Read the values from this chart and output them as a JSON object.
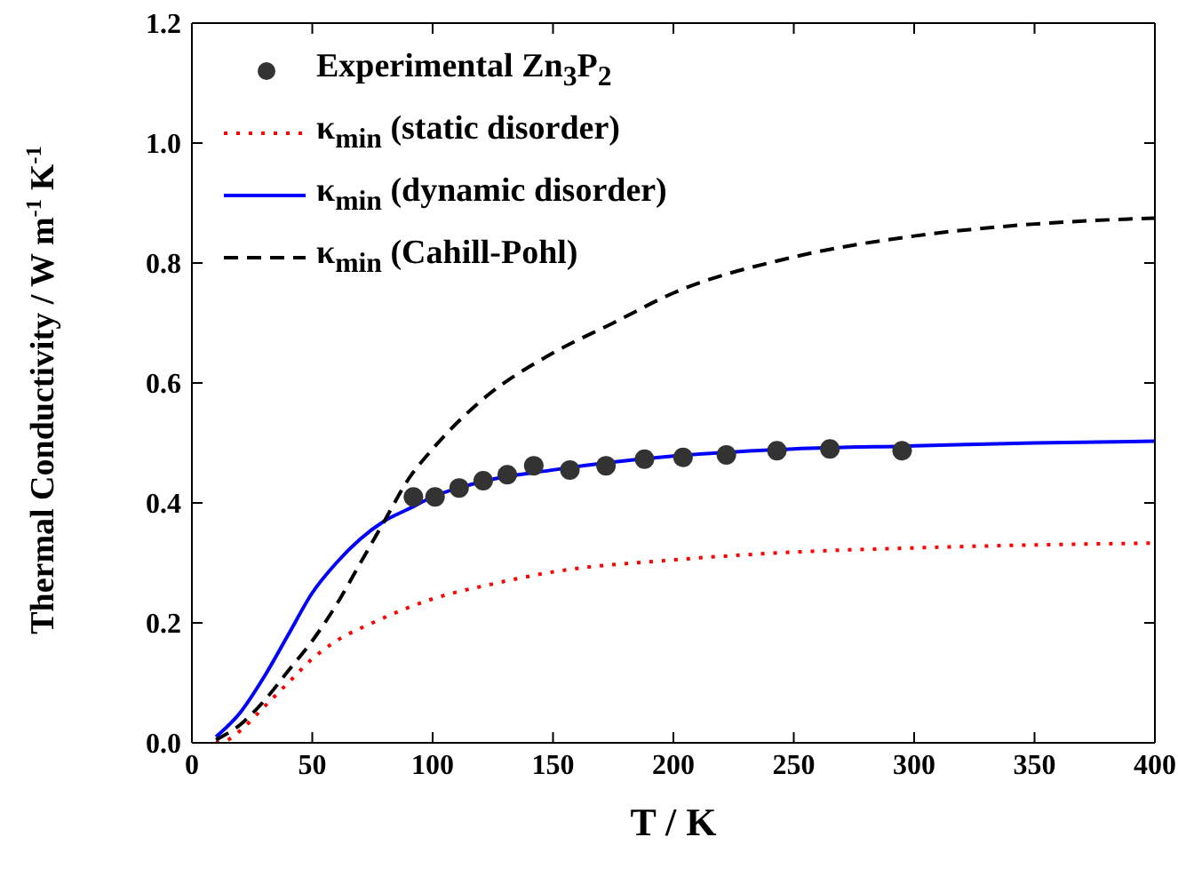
{
  "chart_data": {
    "type": "line",
    "xlabel": "T / K",
    "ylabel": "Thermal Conductivity / W m$^{-1}$ K$^{-1}$",
    "xlim": [
      0,
      400
    ],
    "xticks": [
      0,
      50,
      100,
      150,
      200,
      250,
      300,
      350,
      400
    ],
    "ylim": [
      0,
      1.2
    ],
    "yticks": [
      {
        "value": 0,
        "label": "0.0"
      },
      {
        "value": 0.2,
        "label": "0.2"
      },
      {
        "value": 0.4,
        "label": "0.4"
      },
      {
        "value": 0.6,
        "label": "0.6"
      },
      {
        "value": 0.8,
        "label": "0.8"
      },
      {
        "value": 1.0,
        "label": "1.0"
      },
      {
        "value": 1.2,
        "label": "1.2"
      }
    ],
    "legend": "top left",
    "grid": false,
    "series": [
      {
        "name": "Experimental Zn$_{3}$P$_{2}$",
        "type": "scatter",
        "marker": "circle",
        "color": "#333333",
        "x": [
          92,
          101,
          111,
          121,
          131,
          142,
          157,
          172,
          188,
          204,
          222,
          243,
          265,
          295
        ],
        "values": [
          0.41,
          0.41,
          0.425,
          0.437,
          0.447,
          0.462,
          0.455,
          0.462,
          0.473,
          0.476,
          0.48,
          0.487,
          0.49,
          0.487
        ]
      },
      {
        "name": "κ$_{min}$ (static disorder)",
        "type": "line",
        "line_style": "dotted",
        "color": "#ff0000",
        "x": [
          10,
          15,
          20,
          30,
          40,
          50,
          60,
          75,
          100,
          125,
          150,
          200,
          250,
          300,
          350,
          400
        ],
        "values": [
          0,
          0.005,
          0.02,
          0.06,
          0.1,
          0.14,
          0.17,
          0.2,
          0.24,
          0.265,
          0.285,
          0.305,
          0.318,
          0.325,
          0.33,
          0.333
        ]
      },
      {
        "name": "κ$_{min}$ (dynamic disorder)",
        "type": "line",
        "line_style": "solid",
        "color": "#0000ff",
        "x": [
          10,
          20,
          30,
          40,
          50,
          60,
          70,
          80,
          90,
          100,
          120,
          150,
          200,
          250,
          300,
          350,
          400
        ],
        "values": [
          0.01,
          0.05,
          0.11,
          0.18,
          0.25,
          0.3,
          0.34,
          0.37,
          0.39,
          0.41,
          0.435,
          0.455,
          0.478,
          0.49,
          0.495,
          0.5,
          0.503
        ]
      },
      {
        "name": "κ$_{min}$ (Cahill-Pohl)",
        "type": "line",
        "line_style": "dashed",
        "color": "#000000",
        "x": [
          10,
          20,
          30,
          40,
          50,
          60,
          70,
          80,
          90,
          100,
          120,
          150,
          175,
          200,
          250,
          300,
          350,
          400
        ],
        "values": [
          0.005,
          0.03,
          0.07,
          0.12,
          0.17,
          0.23,
          0.3,
          0.37,
          0.44,
          0.49,
          0.57,
          0.65,
          0.7,
          0.75,
          0.81,
          0.845,
          0.865,
          0.875
        ]
      }
    ]
  }
}
